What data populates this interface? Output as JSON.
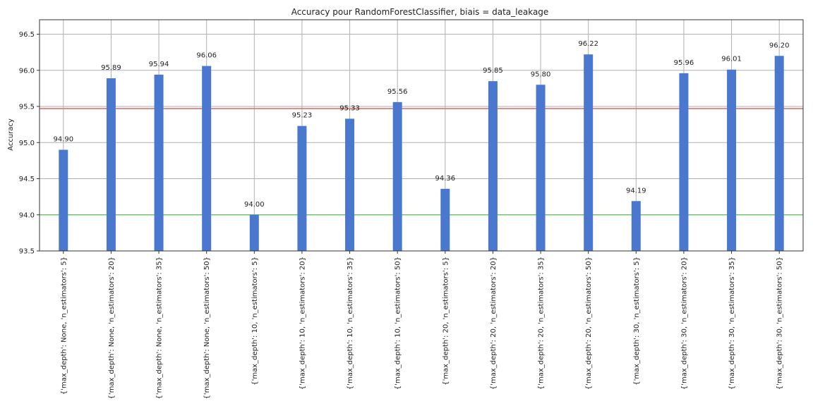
{
  "chart_data": {
    "type": "bar",
    "title": "Accuracy pour RandomForestClassifier, biais = data_leakage",
    "xlabel": "",
    "ylabel": "Accuracy",
    "ylim": [
      93.5,
      96.7
    ],
    "yticks": [
      "93.5",
      "94.0",
      "94.5",
      "95.0",
      "95.5",
      "96.0",
      "96.5"
    ],
    "grid": true,
    "bar_color": "#4a78cf",
    "categories": [
      "{'max_depth': None, 'n_estimators': 5}",
      "{'max_depth': None, 'n_estimators': 20}",
      "{'max_depth': None, 'n_estimators': 35}",
      "{'max_depth': None, 'n_estimators': 50}",
      "{'max_depth': 10, 'n_estimators': 5}",
      "{'max_depth': 10, 'n_estimators': 20}",
      "{'max_depth': 10, 'n_estimators': 35}",
      "{'max_depth': 10, 'n_estimators': 50}",
      "{'max_depth': 20, 'n_estimators': 5}",
      "{'max_depth': 20, 'n_estimators': 20}",
      "{'max_depth': 20, 'n_estimators': 35}",
      "{'max_depth': 20, 'n_estimators': 50}",
      "{'max_depth': 30, 'n_estimators': 5}",
      "{'max_depth': 30, 'n_estimators': 20}",
      "{'max_depth': 30, 'n_estimators': 35}",
      "{'max_depth': 30, 'n_estimators': 50}"
    ],
    "values": [
      94.9,
      95.89,
      95.94,
      96.06,
      94.0,
      95.23,
      95.33,
      95.56,
      94.36,
      95.85,
      95.8,
      96.22,
      94.19,
      95.96,
      96.01,
      96.2
    ],
    "value_labels": [
      "94.90",
      "95.89",
      "95.94",
      "96.06",
      "94.00",
      "95.23",
      "95.33",
      "95.56",
      "94.36",
      "95.85",
      "95.80",
      "96.22",
      "94.19",
      "95.96",
      "96.01",
      "96.20"
    ],
    "reference_lines": [
      {
        "value": 95.47,
        "color": "#e07070"
      },
      {
        "value": 94.0,
        "color": "#6cc46c"
      }
    ]
  }
}
